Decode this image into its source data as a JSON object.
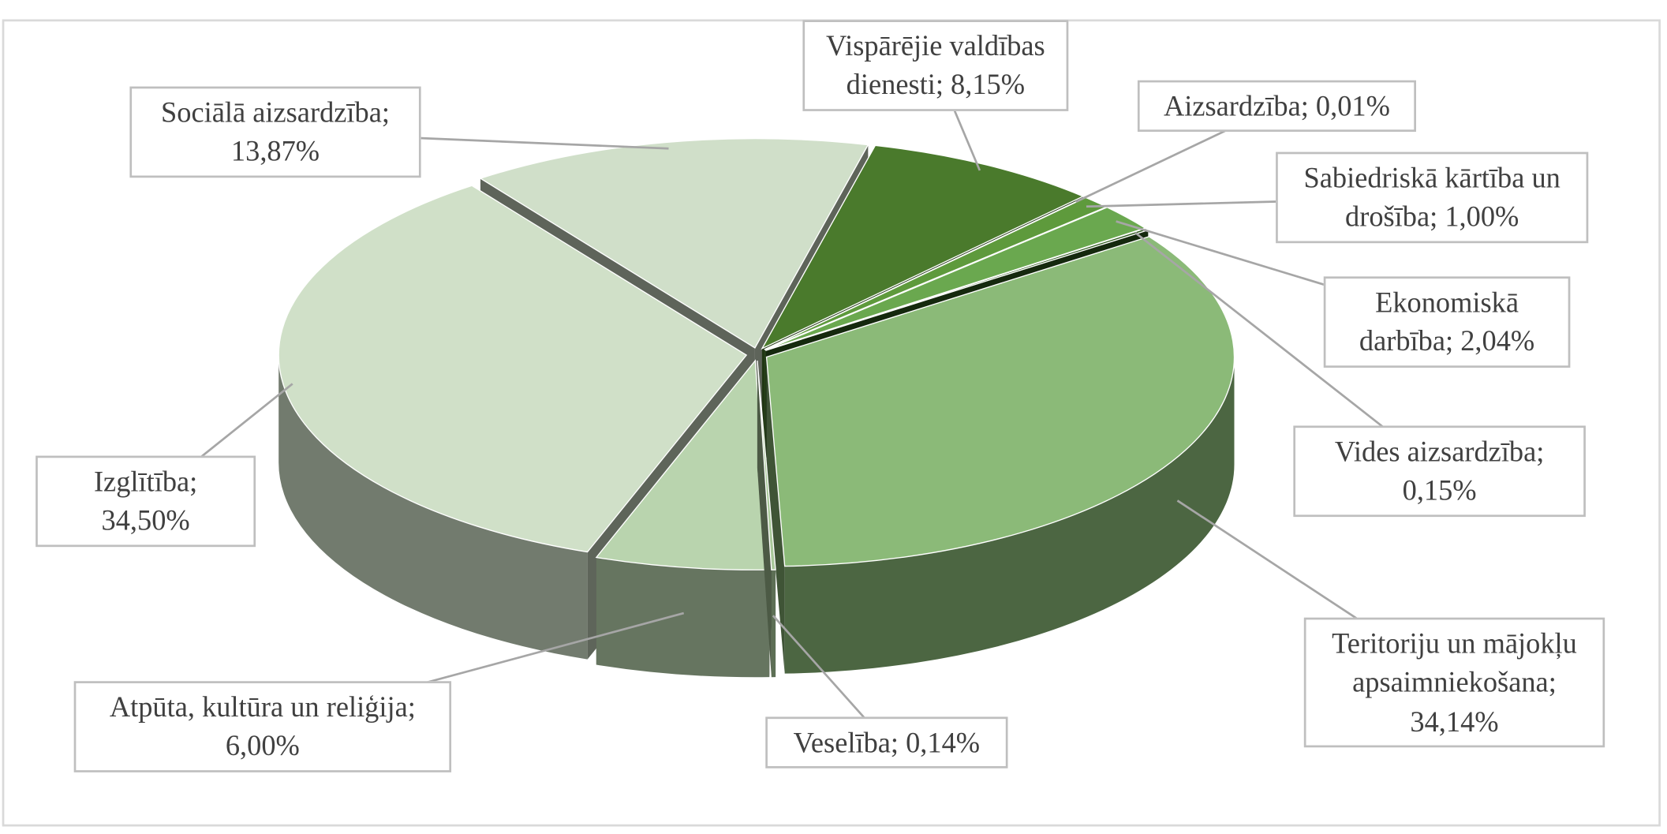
{
  "chart_data": {
    "type": "pie3d",
    "value_labels": [
      "Vispārējie valdības dienesti; 8,15%",
      "Aizsardzība; 0,01%",
      "Sabiedriskā kārtība un drošība; 1,00%",
      "Ekonomiskā darbība; 2,04%",
      "Vides aizsardzība; 0,15%",
      "Teritoriju un mājokļu apsaimniekošana; 34,14%",
      "Veselība; 0,14%",
      "Atpūta, kultūra un reliģija; 6,00%",
      "Izglītība; 34,50%",
      "Sociālā aizsardzība; 13,87%"
    ],
    "values": [
      8.15,
      0.01,
      1.0,
      2.04,
      0.15,
      34.14,
      0.14,
      6.0,
      34.5,
      13.87
    ],
    "colors": [
      "#4a7a2c",
      "#3f6e28",
      "#5e9a3c",
      "#6aa84f",
      "#2f5a1e",
      "#8bba78",
      "#a9c99a",
      "#b9d4ae",
      "#d0e0c8",
      "#d0dfc9"
    ]
  }
}
